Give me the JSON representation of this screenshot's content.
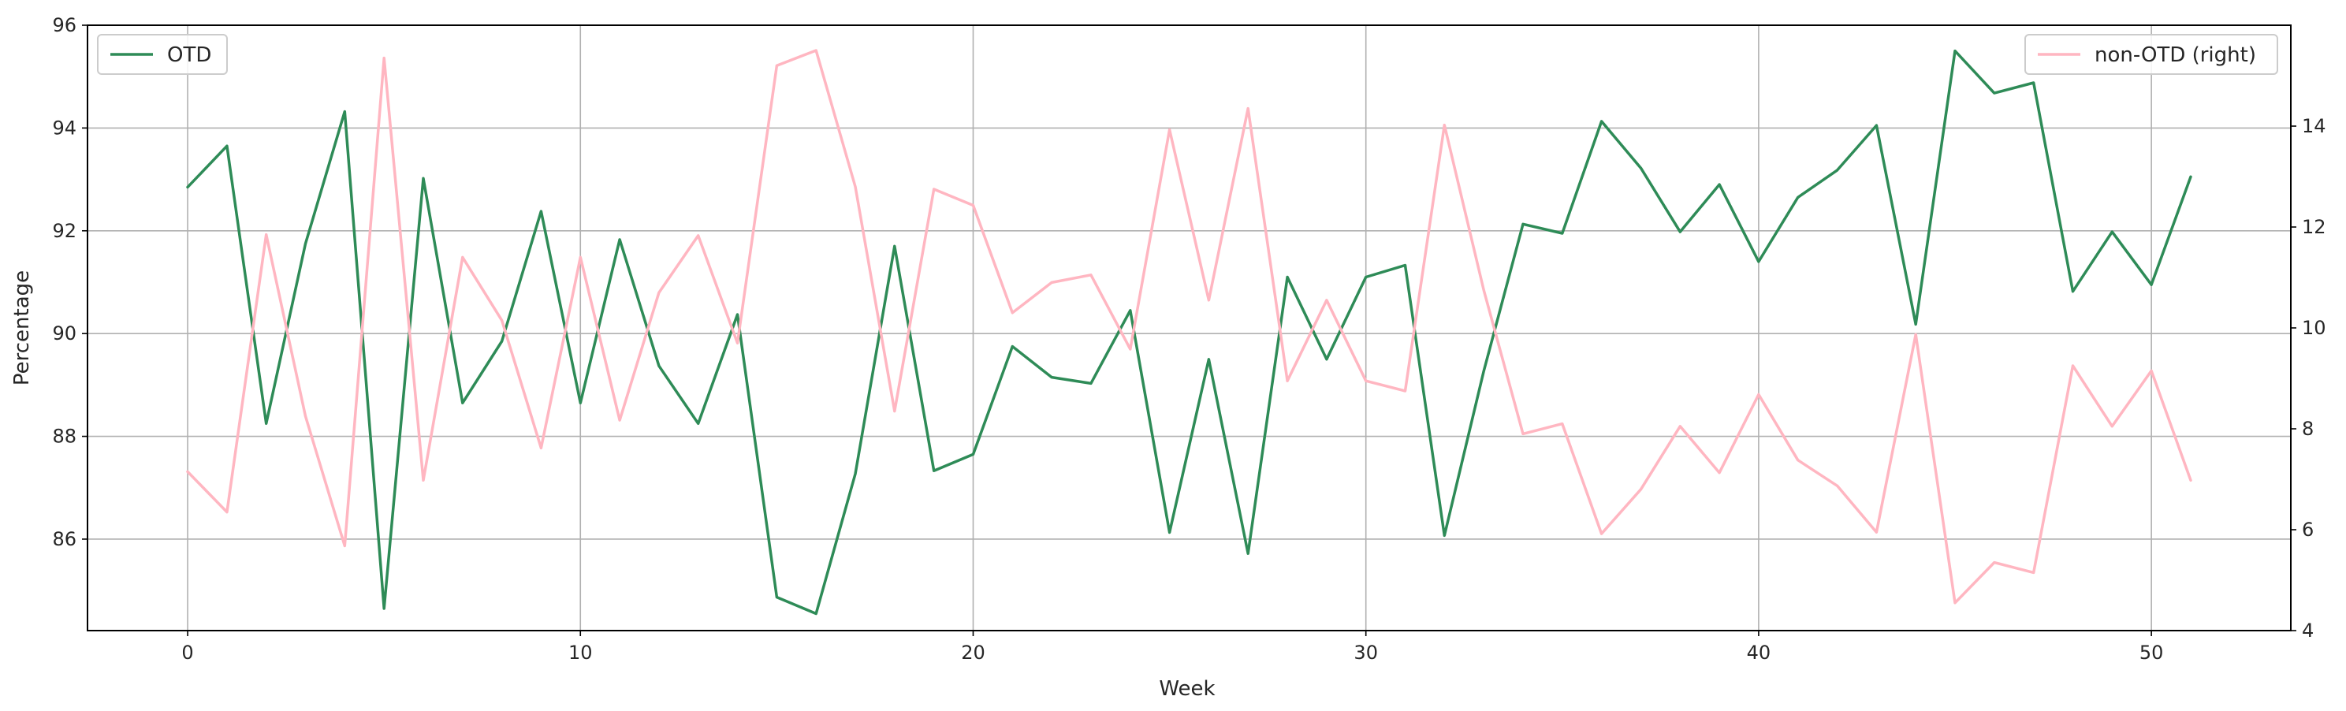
{
  "chart_data": {
    "type": "line",
    "xlabel": "Week",
    "ylabel": "Percentage",
    "xlim": [
      -2.55,
      53.55
    ],
    "ylim": [
      84.22,
      96.0
    ],
    "ylim_right": [
      4.0,
      16.0
    ],
    "x_ticks": [
      0,
      10,
      20,
      30,
      40,
      50
    ],
    "y_ticks": [
      86,
      88,
      90,
      92,
      94,
      96
    ],
    "y_ticks_right": [
      4,
      6,
      8,
      10,
      12,
      14
    ],
    "grid": true,
    "x": [
      0,
      1,
      2,
      3,
      4,
      5,
      6,
      7,
      8,
      9,
      10,
      11,
      12,
      13,
      14,
      15,
      16,
      17,
      18,
      19,
      20,
      21,
      22,
      23,
      24,
      25,
      26,
      27,
      28,
      29,
      30,
      31,
      32,
      33,
      34,
      35,
      36,
      37,
      38,
      39,
      40,
      41,
      42,
      43,
      44,
      45,
      46,
      47,
      48,
      49,
      50,
      51
    ],
    "series": [
      {
        "name": "OTD",
        "axis": "left",
        "color": "#2e8b57",
        "legend_position": "upper-left",
        "values": [
          92.85,
          93.65,
          88.25,
          91.75,
          94.32,
          84.65,
          93.02,
          88.65,
          89.85,
          92.38,
          88.65,
          91.83,
          89.37,
          88.25,
          90.37,
          84.87,
          84.55,
          87.27,
          91.7,
          87.33,
          87.65,
          89.75,
          89.15,
          89.03,
          90.45,
          86.13,
          89.5,
          85.72,
          91.1,
          89.5,
          91.1,
          91.33,
          86.07,
          89.27,
          92.13,
          91.95,
          94.13,
          93.22,
          91.98,
          92.9,
          91.4,
          92.65,
          93.18,
          94.05,
          90.18,
          95.5,
          94.68,
          94.88,
          90.82,
          91.98,
          90.95,
          93.05
        ]
      },
      {
        "name": "non-OTD (right)",
        "axis": "right",
        "color": "#ffb6c1",
        "legend_position": "upper-right",
        "values": [
          7.15,
          6.35,
          11.85,
          8.25,
          5.68,
          15.35,
          6.98,
          11.4,
          10.15,
          7.62,
          11.4,
          8.17,
          10.7,
          11.83,
          9.7,
          15.2,
          15.5,
          12.8,
          8.35,
          12.75,
          12.43,
          10.3,
          10.9,
          11.05,
          9.58,
          13.93,
          10.55,
          14.35,
          8.95,
          10.55,
          8.95,
          8.75,
          14.02,
          10.75,
          7.9,
          8.1,
          5.92,
          6.8,
          8.05,
          7.13,
          8.68,
          7.38,
          6.87,
          5.95,
          9.87,
          4.55,
          5.35,
          5.15,
          9.25,
          8.05,
          9.15,
          6.98
        ]
      }
    ]
  }
}
